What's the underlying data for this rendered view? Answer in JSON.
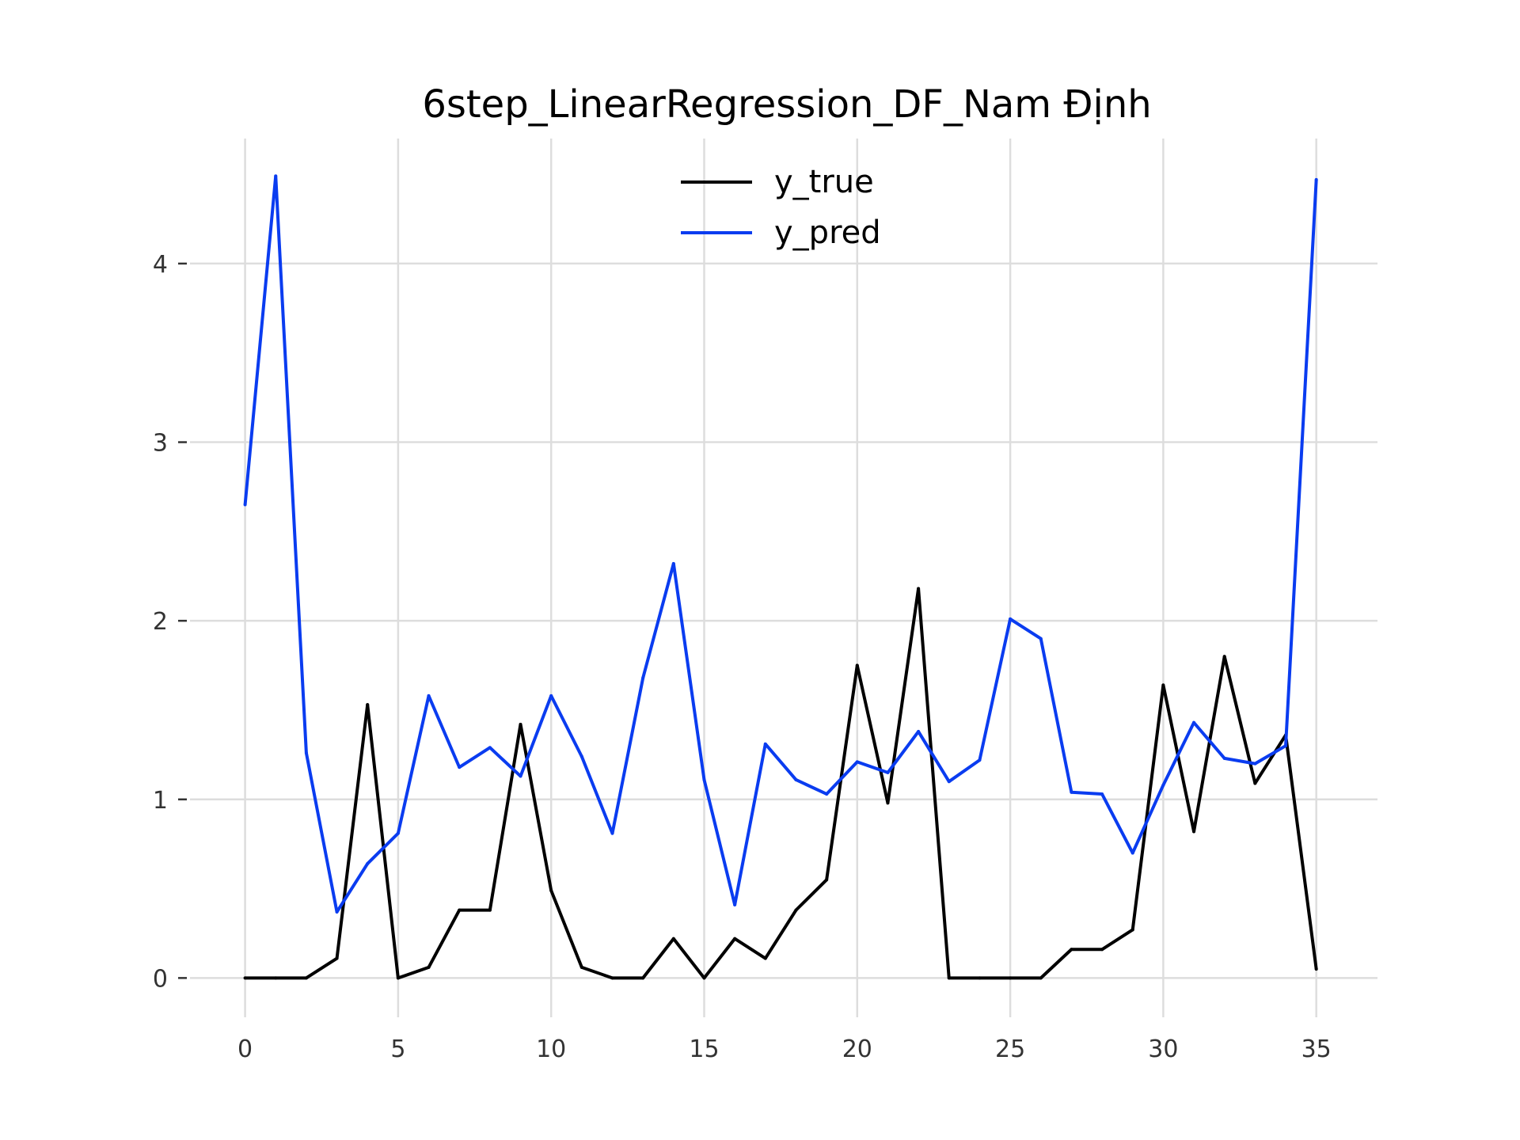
{
  "chart_data": {
    "type": "line",
    "title": "6step_LinearRegression_DF_Nam Định",
    "xlabel": "",
    "ylabel": "",
    "xlim": [
      -1.8,
      37
    ],
    "ylim": [
      -0.22,
      4.7
    ],
    "xticks": [
      0,
      5,
      10,
      15,
      20,
      25,
      30,
      35
    ],
    "yticks": [
      0,
      1,
      2,
      3,
      4
    ],
    "xtick_labels": [
      "0",
      "5",
      "10",
      "15",
      "20",
      "25",
      "30",
      "35"
    ],
    "ytick_labels": [
      "0",
      "1",
      "2",
      "3",
      "4"
    ],
    "grid": true,
    "legend_position": "top-center",
    "x": [
      0,
      1,
      2,
      3,
      4,
      5,
      6,
      7,
      8,
      9,
      10,
      11,
      12,
      13,
      14,
      15,
      16,
      17,
      18,
      19,
      20,
      21,
      22,
      23,
      24,
      25,
      26,
      27,
      28,
      29,
      30,
      31,
      32,
      33,
      34,
      35
    ],
    "series": [
      {
        "name": "y_true",
        "color": "#000000",
        "values": [
          0,
          0,
          0,
          0.11,
          1.53,
          0,
          0.06,
          0.38,
          0.38,
          1.42,
          0.49,
          0.06,
          0,
          0,
          0.22,
          0,
          0.22,
          0.11,
          0.38,
          0.55,
          1.75,
          0.98,
          2.18,
          0,
          0,
          0,
          0,
          0.16,
          0.16,
          0.27,
          1.64,
          0.82,
          1.8,
          1.09,
          1.36,
          0.05
        ]
      },
      {
        "name": "y_pred",
        "color": "#0a3cf0",
        "values": [
          2.65,
          4.49,
          1.26,
          0.37,
          0.64,
          0.81,
          1.58,
          1.18,
          1.29,
          1.13,
          1.58,
          1.24,
          0.81,
          1.68,
          2.32,
          1.11,
          0.41,
          1.31,
          1.11,
          1.03,
          1.21,
          1.15,
          1.38,
          1.1,
          1.22,
          2.01,
          1.9,
          1.04,
          1.03,
          0.7,
          1.08,
          1.43,
          1.23,
          1.2,
          1.3,
          4.47
        ]
      }
    ]
  }
}
